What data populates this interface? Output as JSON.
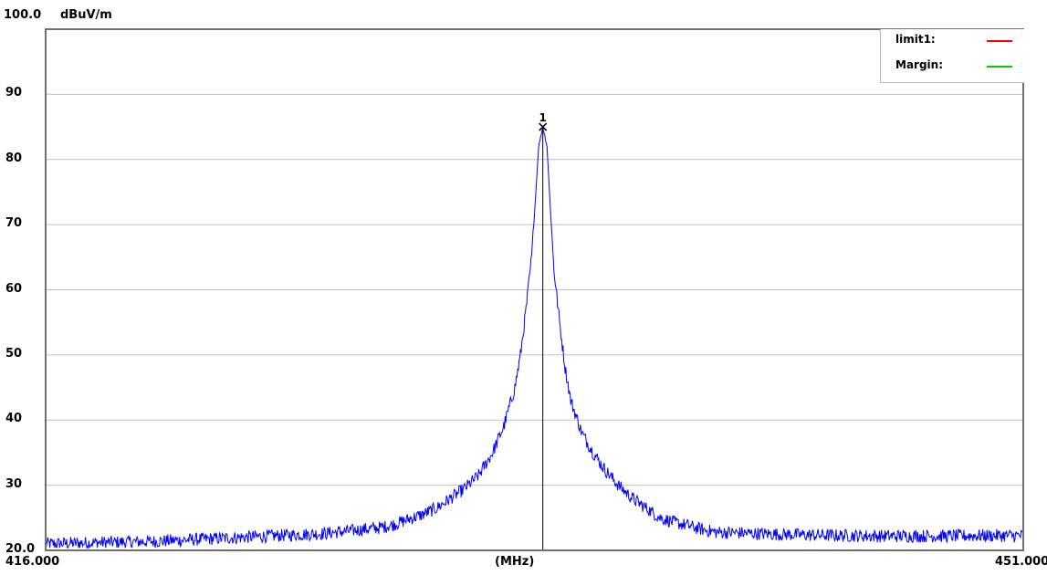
{
  "chart_data": {
    "type": "line",
    "title": "",
    "top_label": "100.0",
    "ylabel": "dBuV/m",
    "xlabel": "(MHz)",
    "x_start_label": "416.000",
    "x_end_label": "451.000",
    "xlim": [
      416.0,
      451.0
    ],
    "ylim": [
      20.0,
      100.0
    ],
    "y_ticks": [
      {
        "value": 90,
        "label": "90"
      },
      {
        "value": 80,
        "label": "80"
      },
      {
        "value": 70,
        "label": "70"
      },
      {
        "value": 60,
        "label": "60"
      },
      {
        "value": 50,
        "label": "50"
      },
      {
        "value": 40,
        "label": "40"
      },
      {
        "value": 30,
        "label": "30"
      },
      {
        "value": 20,
        "label": "20.0"
      }
    ],
    "grid": true,
    "legend": {
      "placement": "top-right",
      "entries": [
        {
          "label": "limit1:",
          "color": "#ff0000"
        },
        {
          "label": "Margin:",
          "color": "#00cc00"
        }
      ]
    },
    "marker": {
      "label": "1",
      "x": 433.8,
      "y": 85.0
    },
    "series": [
      {
        "color": "#0000ff",
        "noise_amplitude": 1.0,
        "x": [
          416.0,
          418.0,
          420.0,
          422.0,
          424.0,
          426.0,
          428.0,
          428.5,
          429.0,
          429.5,
          430.0,
          430.5,
          431.0,
          431.5,
          432.0,
          432.4,
          432.8,
          433.0,
          433.2,
          433.4,
          433.55,
          433.65,
          433.8,
          433.95,
          434.05,
          434.2,
          434.4,
          434.6,
          434.8,
          435.2,
          435.6,
          436.0,
          436.5,
          437.0,
          437.5,
          438.0,
          438.5,
          439.0,
          439.5,
          440.0,
          442.0,
          444.0,
          446.0,
          448.0,
          451.0
        ],
        "y": [
          21.0,
          21.2,
          21.4,
          21.8,
          22.2,
          22.6,
          23.5,
          24.0,
          24.8,
          25.5,
          26.5,
          28.0,
          29.5,
          31.5,
          35.0,
          39.0,
          45.0,
          50.0,
          57.0,
          65.0,
          75.0,
          82.0,
          85.0,
          82.0,
          74.0,
          63.0,
          55.0,
          48.0,
          43.0,
          38.0,
          35.0,
          32.5,
          30.0,
          28.0,
          26.5,
          25.0,
          24.3,
          23.8,
          23.2,
          22.8,
          22.5,
          22.3,
          22.2,
          22.2,
          22.3
        ]
      }
    ]
  }
}
